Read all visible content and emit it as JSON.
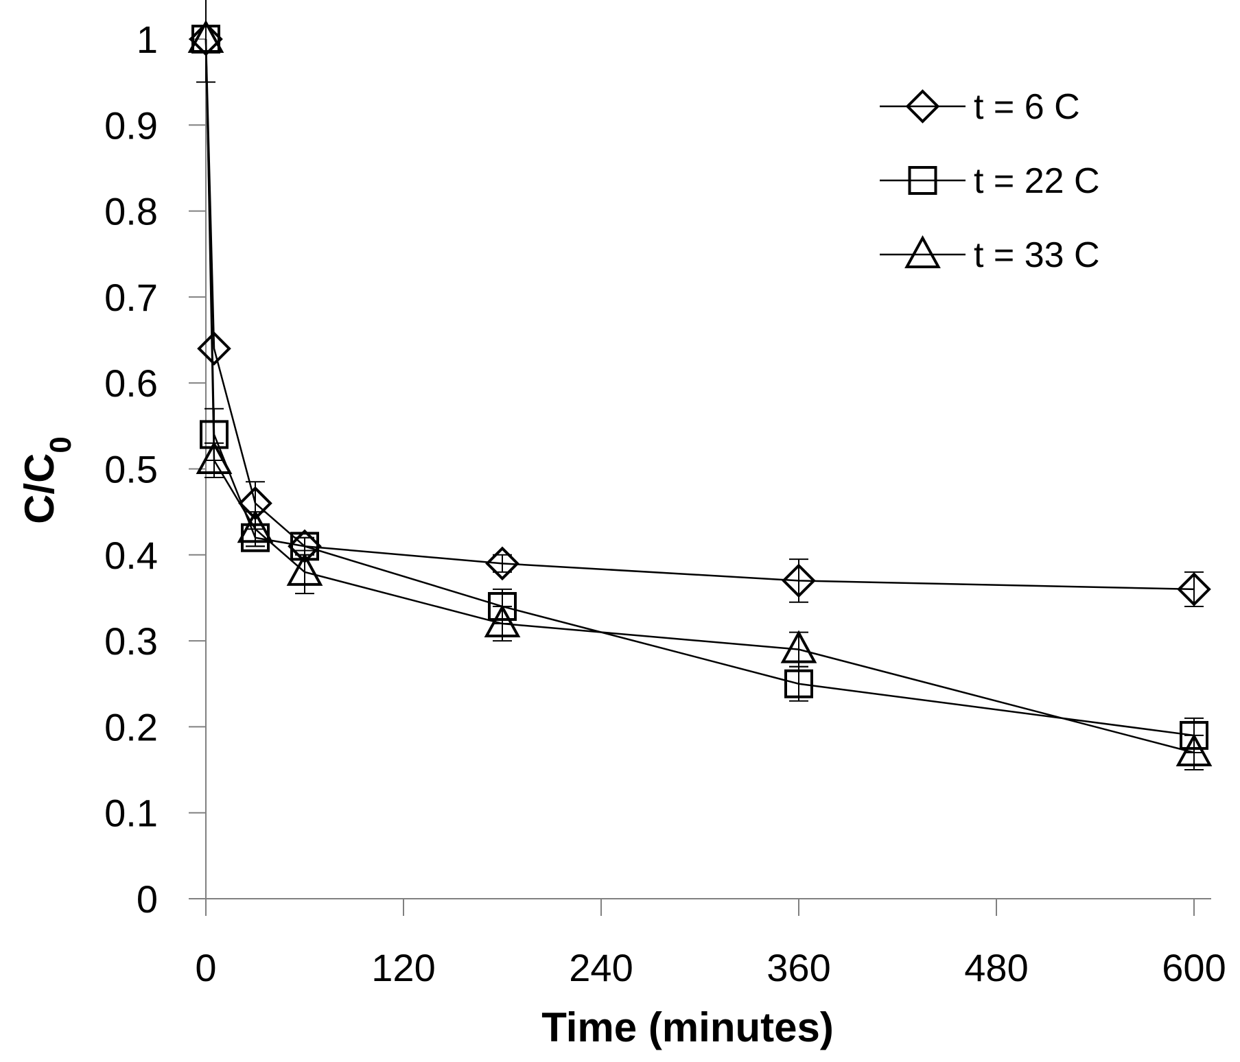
{
  "chart_data": {
    "type": "line",
    "title": "",
    "xlabel": "Time (minutes)",
    "ylabel_main": "C/C",
    "ylabel_sub": "0",
    "xlim": [
      0,
      600
    ],
    "ylim": [
      0,
      1
    ],
    "xticks": [
      0,
      120,
      240,
      360,
      480,
      600
    ],
    "xtick_labels": [
      "0",
      "120",
      "240",
      "360",
      "480",
      "600"
    ],
    "yticks": [
      0,
      0.1,
      0.2,
      0.3,
      0.4,
      0.5,
      0.6,
      0.7,
      0.8,
      0.9,
      1
    ],
    "ytick_labels": [
      "0",
      "0.1",
      "0.2",
      "0.3",
      "0.4",
      "0.5",
      "0.6",
      "0.7",
      "0.8",
      "0.9",
      "1"
    ],
    "grid": false,
    "legend_position": "top-right",
    "series": [
      {
        "name": "t = 6 C",
        "marker": "diamond",
        "color": "#000000",
        "x": [
          0,
          5,
          30,
          60,
          180,
          360,
          600
        ],
        "y": [
          1.0,
          0.64,
          0.46,
          0.41,
          0.39,
          0.37,
          0.36
        ],
        "err": [
          0.0,
          0.0,
          0.025,
          0.01,
          0.01,
          0.025,
          0.02
        ]
      },
      {
        "name": "t = 22 C",
        "marker": "square",
        "color": "#000000",
        "x": [
          0,
          5,
          30,
          60,
          180,
          360,
          600
        ],
        "y": [
          1.0,
          0.54,
          0.42,
          0.41,
          0.34,
          0.25,
          0.19
        ],
        "err": [
          0.0,
          0.03,
          0.01,
          0.01,
          0.02,
          0.02,
          0.02
        ]
      },
      {
        "name": "t = 33 C",
        "marker": "triangle",
        "color": "#000000",
        "x": [
          0,
          5,
          30,
          60,
          180,
          360,
          600
        ],
        "y": [
          1.0,
          0.51,
          0.43,
          0.38,
          0.32,
          0.29,
          0.17
        ],
        "err": [
          0.05,
          0.02,
          0.02,
          0.025,
          0.02,
          0.02,
          0.02
        ]
      }
    ]
  }
}
